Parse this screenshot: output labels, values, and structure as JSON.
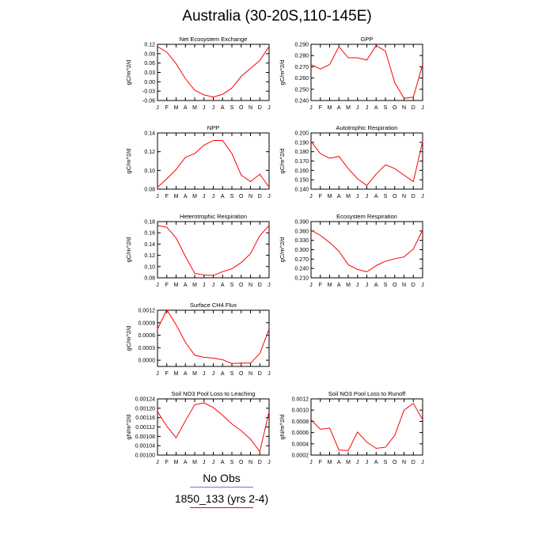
{
  "page": {
    "title": "Australia (30-20S,110-145E)"
  },
  "legend": {
    "items": [
      {
        "label": "No Obs",
        "color": "#5a7fd6"
      },
      {
        "label": "1850_133 (yrs 2-4)",
        "color": "#ff0000"
      }
    ]
  },
  "style": {
    "line_color": "#ff0000",
    "frame_color": "#000000"
  },
  "chart_data": [
    {
      "type": "line",
      "title": "Net Ecosystem Exchange",
      "ylabel": "gC/m^2/d",
      "categories": [
        "J",
        "F",
        "M",
        "A",
        "M",
        "J",
        "J",
        "A",
        "S",
        "O",
        "N",
        "D",
        "J"
      ],
      "ylim": [
        -0.06,
        0.12
      ],
      "yticks": [
        "0.12",
        "0.09",
        "0.06",
        "0.03",
        "0.00",
        "-0.03",
        "-0.06"
      ],
      "ytick_values": [
        0.12,
        0.09,
        0.06,
        0.03,
        0.0,
        -0.03,
        -0.06
      ],
      "series": [
        {
          "values": [
            0.113,
            0.095,
            0.058,
            0.01,
            -0.027,
            -0.042,
            -0.049,
            -0.04,
            -0.02,
            0.017,
            0.043,
            0.068,
            0.113
          ]
        }
      ]
    },
    {
      "type": "line",
      "title": "GPP",
      "ylabel": "gC/m^2/d",
      "categories": [
        "J",
        "F",
        "M",
        "A",
        "M",
        "J",
        "J",
        "A",
        "S",
        "O",
        "N",
        "D",
        "J"
      ],
      "ylim": [
        0.24,
        0.29
      ],
      "yticks": [
        "0.290",
        "0.280",
        "0.270",
        "0.260",
        "0.250",
        "0.240"
      ],
      "ytick_values": [
        0.29,
        0.28,
        0.27,
        0.26,
        0.25,
        0.24
      ],
      "series": [
        {
          "values": [
            0.272,
            0.268,
            0.272,
            0.288,
            0.278,
            0.278,
            0.276,
            0.289,
            0.284,
            0.256,
            0.242,
            0.243,
            0.272
          ]
        }
      ]
    },
    {
      "type": "line",
      "title": "NPP",
      "ylabel": "gC/m^2/d",
      "categories": [
        "J",
        "F",
        "M",
        "A",
        "M",
        "J",
        "J",
        "A",
        "S",
        "O",
        "N",
        "D",
        "J"
      ],
      "ylim": [
        0.08,
        0.14
      ],
      "yticks": [
        "0.14",
        "0.12",
        "0.10",
        "0.08"
      ],
      "ytick_values": [
        0.14,
        0.12,
        0.1,
        0.08
      ],
      "series": [
        {
          "values": [
            0.082,
            0.091,
            0.101,
            0.114,
            0.118,
            0.127,
            0.132,
            0.132,
            0.118,
            0.095,
            0.088,
            0.096,
            0.082
          ]
        }
      ]
    },
    {
      "type": "line",
      "title": "Autotrophic Respiration",
      "ylabel": "gC/m^2/d",
      "categories": [
        "J",
        "F",
        "M",
        "A",
        "M",
        "J",
        "J",
        "A",
        "S",
        "O",
        "N",
        "D",
        "J"
      ],
      "ylim": [
        0.14,
        0.2
      ],
      "yticks": [
        "0.200",
        "0.190",
        "0.180",
        "0.170",
        "0.160",
        "0.150",
        "0.140"
      ],
      "ytick_values": [
        0.2,
        0.19,
        0.18,
        0.17,
        0.16,
        0.15,
        0.14
      ],
      "series": [
        {
          "values": [
            0.191,
            0.178,
            0.173,
            0.175,
            0.162,
            0.151,
            0.144,
            0.156,
            0.166,
            0.162,
            0.155,
            0.148,
            0.191
          ]
        }
      ]
    },
    {
      "type": "line",
      "title": "Heterotrophic Respiration",
      "ylabel": "gC/m^2/d",
      "categories": [
        "J",
        "F",
        "M",
        "A",
        "M",
        "J",
        "J",
        "A",
        "S",
        "O",
        "N",
        "D",
        "J"
      ],
      "ylim": [
        0.08,
        0.18
      ],
      "yticks": [
        "0.18",
        "0.16",
        "0.14",
        "0.12",
        "0.10",
        "0.08"
      ],
      "ytick_values": [
        0.18,
        0.16,
        0.14,
        0.12,
        0.1,
        0.08
      ],
      "series": [
        {
          "values": [
            0.173,
            0.17,
            0.151,
            0.118,
            0.088,
            0.085,
            0.084,
            0.091,
            0.096,
            0.107,
            0.123,
            0.155,
            0.173
          ]
        }
      ]
    },
    {
      "type": "line",
      "title": "Ecosystem Respiration",
      "ylabel": "gC/m^2/d",
      "categories": [
        "J",
        "F",
        "M",
        "A",
        "M",
        "J",
        "J",
        "A",
        "S",
        "O",
        "N",
        "D",
        "J"
      ],
      "ylim": [
        0.21,
        0.39
      ],
      "yticks": [
        "0.390",
        "0.360",
        "0.330",
        "0.300",
        "0.270",
        "0.240",
        "0.210"
      ],
      "ytick_values": [
        0.39,
        0.36,
        0.33,
        0.3,
        0.27,
        0.24,
        0.21
      ],
      "series": [
        {
          "values": [
            0.363,
            0.346,
            0.323,
            0.295,
            0.252,
            0.237,
            0.229,
            0.249,
            0.263,
            0.271,
            0.277,
            0.302,
            0.363
          ]
        }
      ]
    },
    {
      "type": "line",
      "title": "Surface CH4 Flux",
      "ylabel": "gC/m^2/d",
      "categories": [
        "J",
        "F",
        "M",
        "A",
        "M",
        "J",
        "J",
        "A",
        "S",
        "O",
        "N",
        "D",
        "J"
      ],
      "ylim": [
        -0.00015,
        0.0012
      ],
      "yticks": [
        "0.0012",
        "0.0009",
        "0.0006",
        "0.0003",
        "0.0000"
      ],
      "ytick_values": [
        0.0012,
        0.0009,
        0.0006,
        0.0003,
        0.0
      ],
      "series": [
        {
          "values": [
            0.00075,
            0.00121,
            0.00085,
            0.00043,
            0.00012,
            7e-05,
            5e-05,
            1e-05,
            -8e-05,
            -7e-05,
            -7e-05,
            0.00016,
            0.00075
          ]
        }
      ]
    },
    {
      "type": "line",
      "title": "Soil NO3 Pool Loss to Leaching",
      "ylabel": "gN/m^2/d",
      "categories": [
        "J",
        "F",
        "M",
        "A",
        "M",
        "J",
        "J",
        "A",
        "S",
        "O",
        "N",
        "D",
        "J"
      ],
      "ylim": [
        0.001,
        0.00124
      ],
      "yticks": [
        "0.00124",
        "0.00120",
        "0.00116",
        "0.00112",
        "0.00108",
        "0.00104",
        "0.00100"
      ],
      "ytick_values": [
        0.00124,
        0.0012,
        0.00116,
        0.00112,
        0.00108,
        0.00104,
        0.001
      ],
      "series": [
        {
          "values": [
            0.001186,
            0.001123,
            0.001074,
            0.001146,
            0.001215,
            0.001223,
            0.001203,
            0.00117,
            0.001133,
            0.001104,
            0.001068,
            0.001015,
            0.001186
          ]
        }
      ]
    },
    {
      "type": "line",
      "title": "Soil NO3 Pool Loss to Runoff",
      "ylabel": "gN/m^2/d",
      "categories": [
        "J",
        "F",
        "M",
        "A",
        "M",
        "J",
        "J",
        "A",
        "S",
        "O",
        "N",
        "D",
        "J"
      ],
      "ylim": [
        0.0002,
        0.0012
      ],
      "yticks": [
        "0.0012",
        "0.0010",
        "0.0008",
        "0.0006",
        "0.0004",
        "0.0002"
      ],
      "ytick_values": [
        0.0012,
        0.001,
        0.0008,
        0.0006,
        0.0004,
        0.0002
      ],
      "series": [
        {
          "values": [
            0.00083,
            0.00066,
            0.00068,
            0.00029,
            0.00028,
            0.00061,
            0.00043,
            0.00032,
            0.00034,
            0.00055,
            0.001,
            0.00112,
            0.00083
          ]
        }
      ]
    }
  ]
}
